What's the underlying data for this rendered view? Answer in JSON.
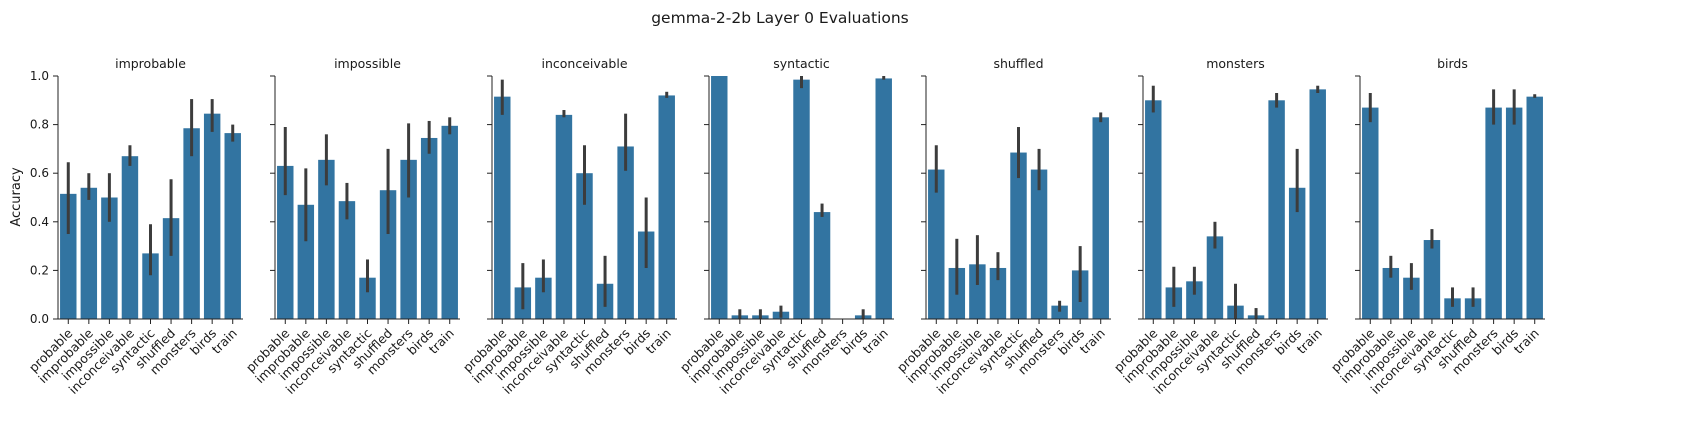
{
  "title": "gemma-2-2b Layer 0 Evaluations",
  "ylabel": "Accuracy",
  "colors": {
    "bar": "#3274a1",
    "errorbar": "#3c3c3c",
    "axis": "#222222"
  },
  "chart_data": {
    "type": "bar",
    "ylim": [
      0,
      1.0
    ],
    "yticks": [
      "0.0",
      "0.2",
      "0.4",
      "0.6",
      "0.8",
      "1.0"
    ],
    "categories": [
      "probable",
      "improbable",
      "impossible",
      "inconceivable",
      "syntactic",
      "shuffled",
      "monsters",
      "birds",
      "train"
    ],
    "panels": [
      {
        "title": "improbable",
        "values": [
          0.515,
          0.54,
          0.5,
          0.67,
          0.27,
          0.415,
          0.785,
          0.845,
          0.765
        ],
        "err_low": [
          0.35,
          0.49,
          0.4,
          0.63,
          0.18,
          0.26,
          0.67,
          0.77,
          0.73
        ],
        "err_high": [
          0.645,
          0.6,
          0.6,
          0.715,
          0.39,
          0.575,
          0.905,
          0.905,
          0.8
        ]
      },
      {
        "title": "impossible",
        "values": [
          0.63,
          0.47,
          0.655,
          0.485,
          0.17,
          0.53,
          0.655,
          0.745,
          0.795
        ],
        "err_low": [
          0.51,
          0.32,
          0.55,
          0.41,
          0.11,
          0.35,
          0.5,
          0.68,
          0.76
        ],
        "err_high": [
          0.79,
          0.62,
          0.76,
          0.56,
          0.245,
          0.7,
          0.805,
          0.815,
          0.83
        ]
      },
      {
        "title": "inconceivable",
        "values": [
          0.915,
          0.13,
          0.17,
          0.84,
          0.6,
          0.145,
          0.71,
          0.36,
          0.92
        ],
        "err_low": [
          0.84,
          0.04,
          0.11,
          0.83,
          0.47,
          0.05,
          0.61,
          0.21,
          0.91
        ],
        "err_high": [
          0.985,
          0.23,
          0.245,
          0.86,
          0.715,
          0.26,
          0.845,
          0.5,
          0.935
        ]
      },
      {
        "title": "syntactic",
        "values": [
          1.0,
          0.015,
          0.015,
          0.03,
          0.985,
          0.44,
          0.0,
          0.015,
          0.99
        ],
        "err_low": [
          1.0,
          0.0,
          0.0,
          0.005,
          0.95,
          0.42,
          0.0,
          0.0,
          0.985
        ],
        "err_high": [
          1.0,
          0.04,
          0.04,
          0.055,
          1.0,
          0.475,
          0.0,
          0.04,
          1.0
        ]
      },
      {
        "title": "shuffled",
        "values": [
          0.615,
          0.21,
          0.225,
          0.21,
          0.685,
          0.615,
          0.055,
          0.2,
          0.83
        ],
        "err_low": [
          0.52,
          0.1,
          0.14,
          0.16,
          0.58,
          0.53,
          0.03,
          0.07,
          0.81
        ],
        "err_high": [
          0.715,
          0.33,
          0.345,
          0.275,
          0.79,
          0.7,
          0.075,
          0.3,
          0.85
        ]
      },
      {
        "title": "monsters",
        "values": [
          0.9,
          0.13,
          0.155,
          0.34,
          0.055,
          0.015,
          0.9,
          0.54,
          0.945
        ],
        "err_low": [
          0.85,
          0.05,
          0.1,
          0.29,
          0.0,
          0.0,
          0.87,
          0.44,
          0.93
        ],
        "err_high": [
          0.96,
          0.215,
          0.215,
          0.4,
          0.145,
          0.045,
          0.93,
          0.7,
          0.96
        ]
      },
      {
        "title": "birds",
        "values": [
          0.87,
          0.21,
          0.17,
          0.325,
          0.085,
          0.085,
          0.87,
          0.87,
          0.915
        ],
        "err_low": [
          0.81,
          0.17,
          0.12,
          0.29,
          0.05,
          0.05,
          0.8,
          0.8,
          0.91
        ],
        "err_high": [
          0.93,
          0.26,
          0.23,
          0.37,
          0.13,
          0.13,
          0.945,
          0.945,
          0.925
        ]
      }
    ]
  }
}
